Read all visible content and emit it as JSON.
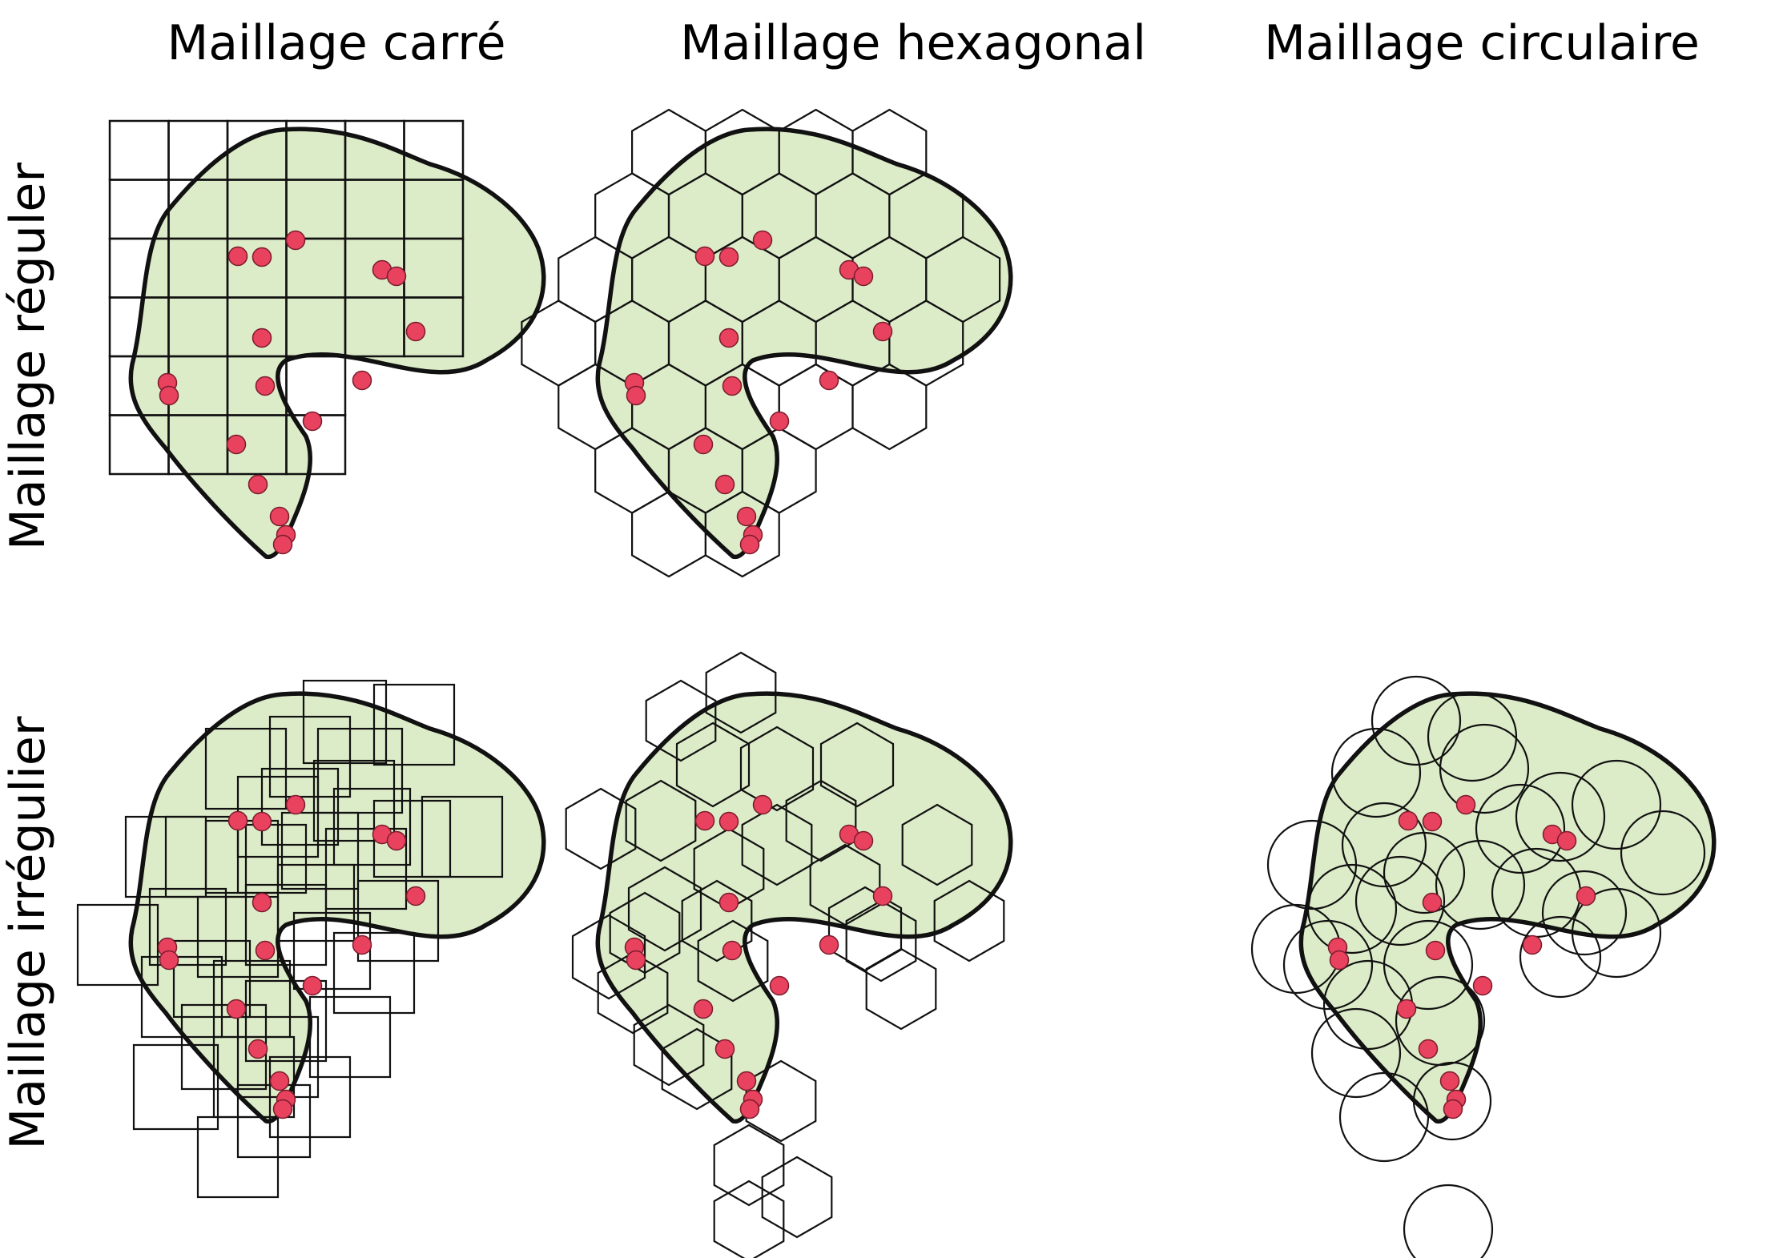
{
  "columns": [
    {
      "label": "Maillage carré"
    },
    {
      "label": "Maillage hexagonal"
    },
    {
      "label": "Maillage circulaire"
    }
  ],
  "rows": [
    {
      "label": "Maillage réguler"
    },
    {
      "label": "Maillage irrégulier"
    }
  ],
  "colors": {
    "region_fill": "#dcebc8",
    "region_stroke": "#111111",
    "grid_stroke": "#111111",
    "point_fill": "#e8425f",
    "point_stroke": "#7a1b2c"
  }
}
